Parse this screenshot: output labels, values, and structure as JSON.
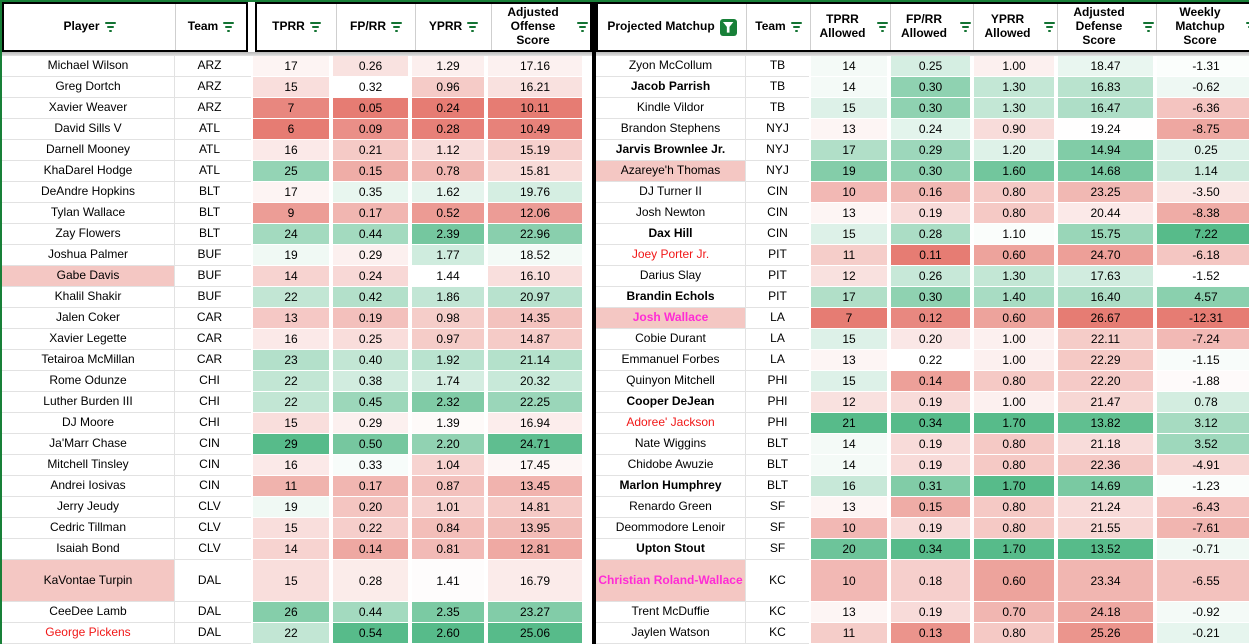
{
  "styles": {
    "accent_green": "#188038",
    "filter_icon_green": "#137333",
    "scale_red_end": "#e67c73",
    "scale_mid": "#ffffff",
    "scale_green_end": "#57bb8a",
    "highlight_pink_bg": "#f4c7c3",
    "alert_red_text": "#f11818",
    "magenta_text": "#ff2bd5"
  },
  "left_table": {
    "header_group_a": [
      {
        "key": "player",
        "label": "Player",
        "filter": "lines"
      },
      {
        "key": "team",
        "label": "Team",
        "filter": "lines"
      }
    ],
    "header_group_b": [
      {
        "key": "tprr",
        "label": "TPRR",
        "filter": "lines"
      },
      {
        "key": "fprr",
        "label": "FP/RR",
        "filter": "lines"
      },
      {
        "key": "yprr",
        "label": "YPRR",
        "filter": "lines"
      },
      {
        "key": "off",
        "label": "Adjusted Offense Score",
        "filter": "lines"
      }
    ],
    "value_keys": [
      "tprr",
      "fprr",
      "yprr",
      "off"
    ],
    "scales": {
      "tprr": {
        "min": 6,
        "mid": 18,
        "max": 29,
        "reverse": false
      },
      "fprr": {
        "min": 0.05,
        "mid": 0.32,
        "max": 0.54,
        "reverse": false
      },
      "yprr": {
        "min": 0.24,
        "mid": 1.44,
        "max": 2.6,
        "reverse": false
      },
      "off": {
        "min": 10.11,
        "mid": 18.0,
        "max": 25.06,
        "reverse": false
      }
    },
    "rows": [
      {
        "name": "Michael Wilson",
        "team": "ARZ",
        "v": [
          "17",
          "0.26",
          "1.29",
          "17.16"
        ]
      },
      {
        "name": "Greg Dortch",
        "team": "ARZ",
        "v": [
          "15",
          "0.32",
          "0.96",
          "16.21"
        ]
      },
      {
        "name": "Xavier Weaver",
        "team": "ARZ",
        "v": [
          "7",
          "0.05",
          "0.24",
          "10.11"
        ]
      },
      {
        "name": "David Sills V",
        "team": "ATL",
        "v": [
          "6",
          "0.09",
          "0.28",
          "10.49"
        ]
      },
      {
        "name": "Darnell Mooney",
        "team": "ATL",
        "v": [
          "16",
          "0.21",
          "1.12",
          "15.19"
        ]
      },
      {
        "name": "KhaDarel Hodge",
        "team": "ATL",
        "v": [
          "25",
          "0.15",
          "0.78",
          "15.81"
        ]
      },
      {
        "name": "DeAndre Hopkins",
        "team": "BLT",
        "v": [
          "17",
          "0.35",
          "1.62",
          "19.76"
        ]
      },
      {
        "name": "Tylan Wallace",
        "team": "BLT",
        "v": [
          "9",
          "0.17",
          "0.52",
          "12.06"
        ]
      },
      {
        "name": "Zay Flowers",
        "team": "BLT",
        "v": [
          "24",
          "0.44",
          "2.39",
          "22.96"
        ]
      },
      {
        "name": "Joshua Palmer",
        "team": "BUF",
        "v": [
          "19",
          "0.29",
          "1.77",
          "18.52"
        ]
      },
      {
        "name": "Gabe Davis",
        "team": "BUF",
        "v": [
          "14",
          "0.24",
          "1.44",
          "16.10"
        ],
        "nbg": true
      },
      {
        "name": "Khalil Shakir",
        "team": "BUF",
        "v": [
          "22",
          "0.42",
          "1.86",
          "20.97"
        ]
      },
      {
        "name": "Jalen Coker",
        "team": "CAR",
        "v": [
          "13",
          "0.19",
          "0.98",
          "14.35"
        ]
      },
      {
        "name": "Xavier Legette",
        "team": "CAR",
        "v": [
          "16",
          "0.25",
          "0.97",
          "14.87"
        ]
      },
      {
        "name": "Tetairoa McMillan",
        "team": "CAR",
        "v": [
          "23",
          "0.40",
          "1.92",
          "21.14"
        ]
      },
      {
        "name": "Rome Odunze",
        "team": "CHI",
        "v": [
          "22",
          "0.38",
          "1.74",
          "20.32"
        ]
      },
      {
        "name": "Luther Burden III",
        "team": "CHI",
        "v": [
          "22",
          "0.45",
          "2.32",
          "22.25"
        ]
      },
      {
        "name": "DJ Moore",
        "team": "CHI",
        "v": [
          "15",
          "0.29",
          "1.39",
          "16.94"
        ]
      },
      {
        "name": "Ja'Marr Chase",
        "team": "CIN",
        "v": [
          "29",
          "0.50",
          "2.20",
          "24.71"
        ]
      },
      {
        "name": "Mitchell Tinsley",
        "team": "CIN",
        "v": [
          "16",
          "0.33",
          "1.04",
          "17.45"
        ]
      },
      {
        "name": "Andrei Iosivas",
        "team": "CIN",
        "v": [
          "11",
          "0.17",
          "0.87",
          "13.45"
        ]
      },
      {
        "name": "Jerry Jeudy",
        "team": "CLV",
        "v": [
          "19",
          "0.20",
          "1.01",
          "14.81"
        ]
      },
      {
        "name": "Cedric Tillman",
        "team": "CLV",
        "v": [
          "15",
          "0.22",
          "0.84",
          "13.95"
        ]
      },
      {
        "name": "Isaiah Bond",
        "team": "CLV",
        "v": [
          "14",
          "0.14",
          "0.81",
          "12.81"
        ]
      },
      {
        "name": "KaVontae Turpin",
        "team": "DAL",
        "v": [
          "15",
          "0.28",
          "1.41",
          "16.79"
        ],
        "nbg": true,
        "tall": true
      },
      {
        "name": "CeeDee Lamb",
        "team": "DAL",
        "v": [
          "26",
          "0.44",
          "2.35",
          "23.27"
        ]
      },
      {
        "name": "George Pickens",
        "team": "DAL",
        "v": [
          "22",
          "0.54",
          "2.60",
          "25.06"
        ],
        "nc": "red"
      }
    ]
  },
  "right_table": {
    "header_group": [
      {
        "key": "matchup",
        "label": "Projected Matchup",
        "filter": "funnel"
      },
      {
        "key": "team",
        "label": "Team",
        "filter": "lines"
      },
      {
        "key": "tprrA",
        "label": "TPRR Allowed",
        "filter": "lines"
      },
      {
        "key": "fprrA",
        "label": "FP/RR Allowed",
        "filter": "lines"
      },
      {
        "key": "yprrA",
        "label": "YPRR Allowed",
        "filter": "lines"
      },
      {
        "key": "def",
        "label": "Adjusted Defense Score",
        "filter": "lines"
      },
      {
        "key": "wk",
        "label": "Weekly Matchup Score",
        "filter": "lines"
      }
    ],
    "value_keys": [
      "tprrA",
      "fprrA",
      "yprrA",
      "def",
      "wk"
    ],
    "scales": {
      "tprrA": {
        "min": 7,
        "mid": 13.5,
        "max": 21,
        "reverse": false
      },
      "fprrA": {
        "min": 0.11,
        "mid": 0.22,
        "max": 0.34,
        "reverse": false
      },
      "yprrA": {
        "min": 0.4,
        "mid": 1.08,
        "max": 1.7,
        "reverse": false
      },
      "def": {
        "min": 13.52,
        "mid": 19.2,
        "max": 26.67,
        "reverse": true
      },
      "wk": {
        "min": -12.31,
        "mid": -1.5,
        "max": 7.22,
        "reverse": false
      }
    },
    "rows": [
      {
        "name": "Zyon McCollum",
        "team": "TB",
        "v": [
          "14",
          "0.25",
          "1.00",
          "18.47",
          "-1.31"
        ]
      },
      {
        "name": "Jacob Parrish",
        "team": "TB",
        "v": [
          "14",
          "0.30",
          "1.30",
          "16.83",
          "-0.62"
        ],
        "b": true
      },
      {
        "name": "Kindle Vildor",
        "team": "TB",
        "v": [
          "15",
          "0.30",
          "1.30",
          "16.47",
          "-6.36"
        ]
      },
      {
        "name": "Brandon Stephens",
        "team": "NYJ",
        "v": [
          "13",
          "0.24",
          "0.90",
          "19.24",
          "-8.75"
        ]
      },
      {
        "name": "Jarvis Brownlee Jr.",
        "team": "NYJ",
        "v": [
          "17",
          "0.29",
          "1.20",
          "14.94",
          "0.25"
        ],
        "b": true
      },
      {
        "name": "Azareye'h Thomas",
        "team": "NYJ",
        "v": [
          "19",
          "0.30",
          "1.60",
          "14.68",
          "1.14"
        ],
        "nbg": true
      },
      {
        "name": "DJ Turner II",
        "team": "CIN",
        "v": [
          "10",
          "0.16",
          "0.80",
          "23.25",
          "-3.50"
        ]
      },
      {
        "name": "Josh Newton",
        "team": "CIN",
        "v": [
          "13",
          "0.19",
          "0.80",
          "20.44",
          "-8.38"
        ]
      },
      {
        "name": "Dax Hill",
        "team": "CIN",
        "v": [
          "15",
          "0.28",
          "1.10",
          "15.75",
          "7.22"
        ],
        "b": true
      },
      {
        "name": "Joey Porter Jr.",
        "team": "PIT",
        "v": [
          "11",
          "0.11",
          "0.60",
          "24.70",
          "-6.18"
        ],
        "nc": "red"
      },
      {
        "name": "Darius Slay",
        "team": "PIT",
        "v": [
          "12",
          "0.26",
          "1.30",
          "17.63",
          "-1.52"
        ]
      },
      {
        "name": "Brandin Echols",
        "team": "PIT",
        "v": [
          "17",
          "0.30",
          "1.40",
          "16.40",
          "4.57"
        ],
        "b": true
      },
      {
        "name": "Josh Wallace",
        "team": "LA",
        "v": [
          "7",
          "0.12",
          "0.60",
          "26.67",
          "-12.31"
        ],
        "nbg": true,
        "nc": "mag",
        "b": true
      },
      {
        "name": "Cobie Durant",
        "team": "LA",
        "v": [
          "15",
          "0.20",
          "1.00",
          "22.11",
          "-7.24"
        ]
      },
      {
        "name": "Emmanuel Forbes",
        "team": "LA",
        "v": [
          "13",
          "0.22",
          "1.00",
          "22.29",
          "-1.15"
        ]
      },
      {
        "name": "Quinyon Mitchell",
        "team": "PHI",
        "v": [
          "15",
          "0.14",
          "0.80",
          "22.20",
          "-1.88"
        ]
      },
      {
        "name": "Cooper DeJean",
        "team": "PHI",
        "v": [
          "12",
          "0.19",
          "1.00",
          "21.47",
          "0.78"
        ],
        "b": true
      },
      {
        "name": "Adoree' Jackson",
        "team": "PHI",
        "v": [
          "21",
          "0.34",
          "1.70",
          "13.82",
          "3.12"
        ],
        "nc": "red"
      },
      {
        "name": "Nate Wiggins",
        "team": "BLT",
        "v": [
          "14",
          "0.19",
          "0.80",
          "21.18",
          "3.52"
        ]
      },
      {
        "name": "Chidobe Awuzie",
        "team": "BLT",
        "v": [
          "14",
          "0.19",
          "0.80",
          "22.36",
          "-4.91"
        ]
      },
      {
        "name": "Marlon Humphrey",
        "team": "BLT",
        "v": [
          "16",
          "0.31",
          "1.70",
          "14.69",
          "-1.23"
        ],
        "b": true
      },
      {
        "name": "Renardo Green",
        "team": "SF",
        "v": [
          "13",
          "0.15",
          "0.80",
          "21.24",
          "-6.43"
        ]
      },
      {
        "name": "Deommodore Lenoir",
        "team": "SF",
        "v": [
          "10",
          "0.19",
          "0.80",
          "21.55",
          "-7.61"
        ]
      },
      {
        "name": "Upton Stout",
        "team": "SF",
        "v": [
          "20",
          "0.34",
          "1.70",
          "13.52",
          "-0.71"
        ],
        "b": true
      },
      {
        "name": "Christian Roland-Wallace",
        "team": "KC",
        "v": [
          "10",
          "0.18",
          "0.60",
          "23.34",
          "-6.55"
        ],
        "nbg": true,
        "nc": "mag",
        "b": true,
        "tall": true
      },
      {
        "name": "Trent McDuffie",
        "team": "KC",
        "v": [
          "13",
          "0.19",
          "0.70",
          "24.18",
          "-0.92"
        ]
      },
      {
        "name": "Jaylen Watson",
        "team": "KC",
        "v": [
          "11",
          "0.13",
          "0.80",
          "25.26",
          "-0.21"
        ]
      }
    ]
  }
}
